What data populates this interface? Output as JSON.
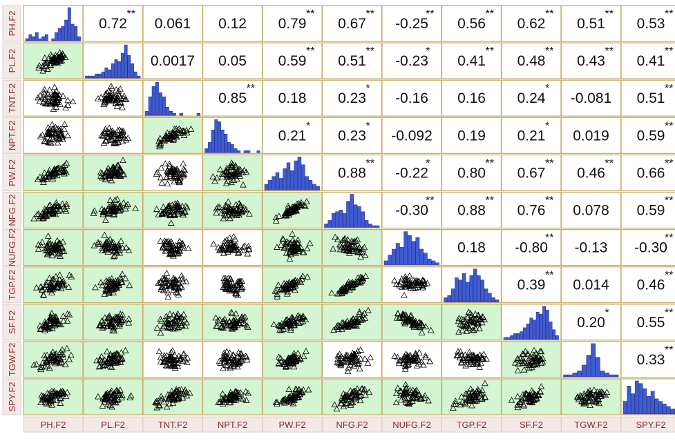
{
  "chart_data": {
    "type": "scatter",
    "variables": [
      "PH.F2",
      "PL.F2",
      "TNT.F2",
      "NPT.F2",
      "PW.F2",
      "NFG.F2",
      "NUFG.F2",
      "TGP.F2",
      "SF.F2",
      "TGW.F2",
      "SPY.F2"
    ],
    "upper_panels": [
      {
        "row": 0,
        "col": 1,
        "label": "0.72",
        "stars": "**"
      },
      {
        "row": 0,
        "col": 2,
        "label": "0.061",
        "stars": ""
      },
      {
        "row": 0,
        "col": 3,
        "label": "0.12",
        "stars": ""
      },
      {
        "row": 0,
        "col": 4,
        "label": "0.79",
        "stars": "**"
      },
      {
        "row": 0,
        "col": 5,
        "label": "0.67",
        "stars": "**"
      },
      {
        "row": 0,
        "col": 6,
        "label": "-0.25",
        "stars": "**"
      },
      {
        "row": 0,
        "col": 7,
        "label": "0.56",
        "stars": "**"
      },
      {
        "row": 0,
        "col": 8,
        "label": "0.62",
        "stars": "**"
      },
      {
        "row": 0,
        "col": 9,
        "label": "0.51",
        "stars": "**"
      },
      {
        "row": 0,
        "col": 10,
        "label": "0.53",
        "stars": "**"
      },
      {
        "row": 1,
        "col": 2,
        "label": "0.0017",
        "stars": ""
      },
      {
        "row": 1,
        "col": 3,
        "label": "0.05",
        "stars": ""
      },
      {
        "row": 1,
        "col": 4,
        "label": "0.59",
        "stars": "**"
      },
      {
        "row": 1,
        "col": 5,
        "label": "0.51",
        "stars": "**"
      },
      {
        "row": 1,
        "col": 6,
        "label": "-0.23",
        "stars": "*"
      },
      {
        "row": 1,
        "col": 7,
        "label": "0.41",
        "stars": "**"
      },
      {
        "row": 1,
        "col": 8,
        "label": "0.48",
        "stars": "**"
      },
      {
        "row": 1,
        "col": 9,
        "label": "0.43",
        "stars": "**"
      },
      {
        "row": 1,
        "col": 10,
        "label": "0.41",
        "stars": "**"
      },
      {
        "row": 2,
        "col": 3,
        "label": "0.85",
        "stars": "**"
      },
      {
        "row": 2,
        "col": 4,
        "label": "0.18",
        "stars": ""
      },
      {
        "row": 2,
        "col": 5,
        "label": "0.23",
        "stars": "*"
      },
      {
        "row": 2,
        "col": 6,
        "label": "-0.16",
        "stars": ""
      },
      {
        "row": 2,
        "col": 7,
        "label": "0.16",
        "stars": ""
      },
      {
        "row": 2,
        "col": 8,
        "label": "0.24",
        "stars": "*"
      },
      {
        "row": 2,
        "col": 9,
        "label": "-0.081",
        "stars": ""
      },
      {
        "row": 2,
        "col": 10,
        "label": "0.51",
        "stars": "**"
      },
      {
        "row": 3,
        "col": 4,
        "label": "0.21",
        "stars": "*"
      },
      {
        "row": 3,
        "col": 5,
        "label": "0.23",
        "stars": "*"
      },
      {
        "row": 3,
        "col": 6,
        "label": "-0.092",
        "stars": ""
      },
      {
        "row": 3,
        "col": 7,
        "label": "0.19",
        "stars": ""
      },
      {
        "row": 3,
        "col": 8,
        "label": "0.21",
        "stars": "*"
      },
      {
        "row": 3,
        "col": 9,
        "label": "0.019",
        "stars": ""
      },
      {
        "row": 3,
        "col": 10,
        "label": "0.59",
        "stars": "**"
      },
      {
        "row": 4,
        "col": 5,
        "label": "0.88",
        "stars": "**"
      },
      {
        "row": 4,
        "col": 6,
        "label": "-0.22",
        "stars": "*"
      },
      {
        "row": 4,
        "col": 7,
        "label": "0.80",
        "stars": "**"
      },
      {
        "row": 4,
        "col": 8,
        "label": "0.67",
        "stars": "**"
      },
      {
        "row": 4,
        "col": 9,
        "label": "0.46",
        "stars": "**"
      },
      {
        "row": 4,
        "col": 10,
        "label": "0.66",
        "stars": "**"
      },
      {
        "row": 5,
        "col": 6,
        "label": "-0.30",
        "stars": "**"
      },
      {
        "row": 5,
        "col": 7,
        "label": "0.88",
        "stars": "**"
      },
      {
        "row": 5,
        "col": 8,
        "label": "0.76",
        "stars": "**"
      },
      {
        "row": 5,
        "col": 9,
        "label": "0.078",
        "stars": ""
      },
      {
        "row": 5,
        "col": 10,
        "label": "0.59",
        "stars": "**"
      },
      {
        "row": 6,
        "col": 7,
        "label": "0.18",
        "stars": ""
      },
      {
        "row": 6,
        "col": 8,
        "label": "-0.80",
        "stars": "**"
      },
      {
        "row": 6,
        "col": 9,
        "label": "-0.13",
        "stars": ""
      },
      {
        "row": 6,
        "col": 10,
        "label": "-0.30",
        "stars": "**"
      },
      {
        "row": 7,
        "col": 8,
        "label": "0.39",
        "stars": "**"
      },
      {
        "row": 7,
        "col": 9,
        "label": "0.014",
        "stars": ""
      },
      {
        "row": 7,
        "col": 10,
        "label": "0.46",
        "stars": "**"
      },
      {
        "row": 8,
        "col": 9,
        "label": "0.20",
        "stars": "*"
      },
      {
        "row": 8,
        "col": 10,
        "label": "0.55",
        "stars": "**"
      },
      {
        "row": 9,
        "col": 10,
        "label": "0.33",
        "stars": "**"
      }
    ],
    "histograms": [
      {
        "var": "PH.F2",
        "counts": [
          1,
          3,
          2,
          4,
          1,
          2,
          3,
          0,
          1,
          4,
          6,
          7,
          10,
          16,
          8,
          7,
          2
        ]
      },
      {
        "var": "PL.F2",
        "counts": [
          1,
          1,
          1,
          2,
          2,
          3,
          5,
          4,
          7,
          9,
          8,
          12,
          16,
          11,
          7,
          3,
          1
        ]
      },
      {
        "var": "TNT.F2",
        "counts": [
          2,
          9,
          14,
          16,
          11,
          9,
          4,
          2,
          1,
          0,
          1,
          0,
          0,
          0,
          0,
          1
        ]
      },
      {
        "var": "NPT.F2",
        "counts": [
          2,
          5,
          11,
          16,
          15,
          11,
          9,
          5,
          4,
          2,
          1,
          0,
          1,
          1,
          0,
          0,
          1
        ]
      },
      {
        "var": "PW.F2",
        "counts": [
          3,
          5,
          7,
          9,
          6,
          11,
          14,
          10,
          15,
          17,
          13,
          7,
          5,
          3,
          2
        ]
      },
      {
        "var": "NFG.F2",
        "counts": [
          2,
          4,
          8,
          9,
          10,
          8,
          15,
          19,
          13,
          12,
          9,
          4,
          2,
          1,
          1
        ]
      },
      {
        "var": "NUFG.F2",
        "counts": [
          2,
          5,
          8,
          11,
          9,
          17,
          15,
          12,
          14,
          8,
          6,
          3,
          2,
          1
        ]
      },
      {
        "var": "TGP.F2",
        "counts": [
          2,
          3,
          6,
          11,
          10,
          13,
          9,
          12,
          15,
          12,
          10,
          6,
          4,
          2,
          1
        ]
      },
      {
        "var": "SF.F2",
        "counts": [
          1,
          1,
          2,
          3,
          3,
          4,
          6,
          8,
          11,
          10,
          14,
          13,
          17,
          15,
          9,
          5,
          2
        ]
      },
      {
        "var": "TGW.F2",
        "counts": [
          1,
          1,
          2,
          3,
          6,
          11,
          17,
          10,
          3,
          2,
          1,
          1
        ]
      },
      {
        "var": "SPY.F2",
        "counts": [
          5,
          11,
          8,
          13,
          12,
          10,
          7,
          9,
          6,
          5,
          4,
          3,
          2,
          2
        ]
      }
    ],
    "significant_fill": "#d3f5d1",
    "nonsignificant_fill": "#ffffff",
    "histogram_color": "#3f5bd1",
    "panel_border_color": "#cdae6a",
    "label_color": "#8b2a2a",
    "point_marker": "triangle-outline"
  }
}
